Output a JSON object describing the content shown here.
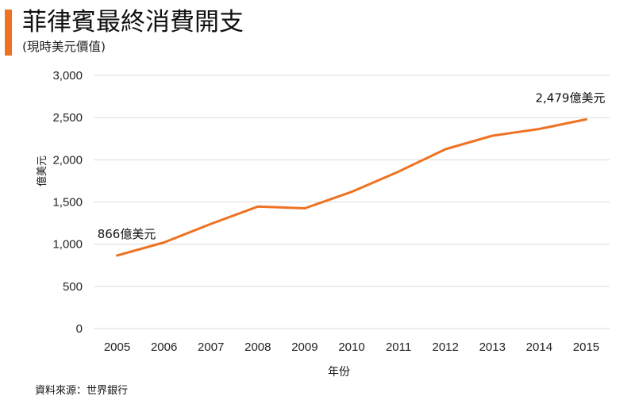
{
  "title": "菲律賓最終消費開支",
  "subtitle": "(現時美元價值)",
  "colors": {
    "accent": "#ee7222",
    "line": "#ee7222",
    "grid": "#d9d9d9"
  },
  "source": "資料來源：世界銀行",
  "chart_data": {
    "type": "line",
    "x": [
      "2005",
      "2006",
      "2007",
      "2008",
      "2009",
      "2010",
      "2011",
      "2012",
      "2013",
      "2014",
      "2015"
    ],
    "series": [
      {
        "values": [
          866,
          1020,
          1240,
          1445,
          1425,
          1620,
          1860,
          2125,
          2285,
          2365,
          2479
        ]
      }
    ],
    "ylabel": "億美元",
    "xlabel": "年份",
    "ylim": [
      0,
      3000
    ],
    "yticks": [
      0,
      500,
      1000,
      1500,
      2000,
      2500,
      3000
    ],
    "ytick_labels": [
      "0",
      "500",
      "1,000",
      "1,500",
      "2,000",
      "2,500",
      "3,000"
    ],
    "grid": "horizontal",
    "annotations": [
      {
        "x": "2005",
        "text": "866億美元"
      },
      {
        "x": "2015",
        "text": "2,479億美元"
      }
    ]
  }
}
